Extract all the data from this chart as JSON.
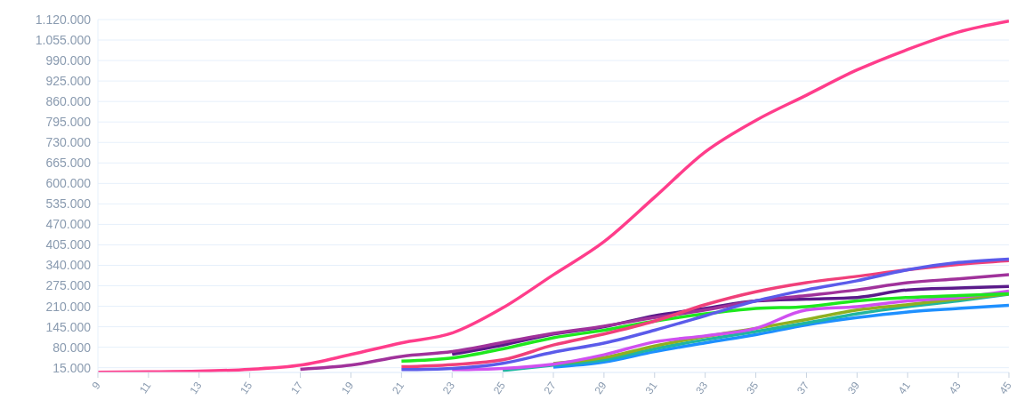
{
  "chart_data": {
    "type": "line",
    "x": [
      9,
      11,
      13,
      15,
      17,
      19,
      21,
      23,
      25,
      27,
      29,
      31,
      33,
      35,
      37,
      39,
      41,
      43,
      45
    ],
    "xlim": [
      9,
      45
    ],
    "xticks": [
      9,
      11,
      13,
      15,
      17,
      19,
      21,
      23,
      25,
      27,
      29,
      31,
      33,
      35,
      37,
      39,
      41,
      43,
      45
    ],
    "ylim": [
      0,
      1120000
    ],
    "yticks": [
      {
        "value": 15000,
        "label": "15.000"
      },
      {
        "value": 80000,
        "label": "80.000"
      },
      {
        "value": 145000,
        "label": "145.000"
      },
      {
        "value": 210000,
        "label": "210.000"
      },
      {
        "value": 275000,
        "label": "275.000"
      },
      {
        "value": 340000,
        "label": "340.000"
      },
      {
        "value": 405000,
        "label": "405.000"
      },
      {
        "value": 470000,
        "label": "470.000"
      },
      {
        "value": 535000,
        "label": "535.000"
      },
      {
        "value": 600000,
        "label": "600.000"
      },
      {
        "value": 665000,
        "label": "665.000"
      },
      {
        "value": 730000,
        "label": "730.000"
      },
      {
        "value": 795000,
        "label": "795.000"
      },
      {
        "value": 860000,
        "label": "860.000"
      },
      {
        "value": 925000,
        "label": "925.000"
      },
      {
        "value": 990000,
        "label": "990.000"
      },
      {
        "value": 1055000,
        "label": "1.055.000"
      },
      {
        "value": 1120000,
        "label": "1.120.000"
      }
    ],
    "grid": "y",
    "legend": false,
    "marker": "none",
    "line_style": "solid",
    "series": [
      {
        "color": "#1e90ff",
        "values": [
          null,
          null,
          null,
          null,
          null,
          null,
          null,
          null,
          null,
          17000,
          33000,
          66000,
          94000,
          120000,
          151000,
          174000,
          192000,
          203000,
          213000
        ]
      },
      {
        "color": "#20b5a0",
        "values": [
          null,
          null,
          null,
          null,
          null,
          null,
          null,
          null,
          6000,
          23000,
          40000,
          75000,
          104000,
          130000,
          157000,
          186000,
          209000,
          227000,
          248000
        ]
      },
      {
        "color": "#8fb020",
        "values": [
          null,
          null,
          null,
          null,
          null,
          null,
          null,
          null,
          null,
          28000,
          47000,
          84000,
          114000,
          140000,
          168000,
          198000,
          215000,
          233000,
          250000
        ]
      },
      {
        "color": "#d050f0",
        "values": [
          null,
          null,
          null,
          null,
          null,
          null,
          null,
          9000,
          13000,
          26000,
          56000,
          97000,
          116000,
          140000,
          198000,
          209000,
          227000,
          238000,
          258000
        ]
      },
      {
        "color": "#1ee81e",
        "values": [
          null,
          null,
          null,
          null,
          null,
          null,
          36000,
          46000,
          75000,
          110000,
          134000,
          163000,
          186000,
          203000,
          209000,
          227000,
          238000,
          244000,
          250000
        ]
      },
      {
        "color": "#5a1a8a",
        "values": [
          null,
          null,
          null,
          null,
          null,
          null,
          null,
          58000,
          87000,
          122000,
          145000,
          180000,
          203000,
          227000,
          233000,
          238000,
          262000,
          268000,
          273000
        ]
      },
      {
        "color": "#a0329b",
        "values": [
          null,
          null,
          null,
          null,
          10000,
          23000,
          51000,
          66000,
          95000,
          124000,
          147000,
          174000,
          198000,
          227000,
          244000,
          262000,
          285000,
          297000,
          310000
        ]
      },
      {
        "color": "#f0407a",
        "values": [
          null,
          null,
          null,
          null,
          null,
          null,
          18000,
          25000,
          40000,
          87000,
          122000,
          163000,
          215000,
          256000,
          285000,
          305000,
          326000,
          343000,
          355000
        ]
      },
      {
        "color": "#5b5bea",
        "values": [
          null,
          null,
          null,
          null,
          null,
          null,
          9000,
          13000,
          29000,
          64000,
          93000,
          134000,
          180000,
          227000,
          262000,
          291000,
          326000,
          349000,
          360000
        ]
      },
      {
        "color": "#ff3d8b",
        "values": [
          1000,
          2000,
          4000,
          10000,
          23000,
          57000,
          94000,
          125000,
          205000,
          310000,
          415000,
          556000,
          700000,
          800000,
          880000,
          960000,
          1025000,
          1080000,
          1115000
        ]
      }
    ]
  }
}
